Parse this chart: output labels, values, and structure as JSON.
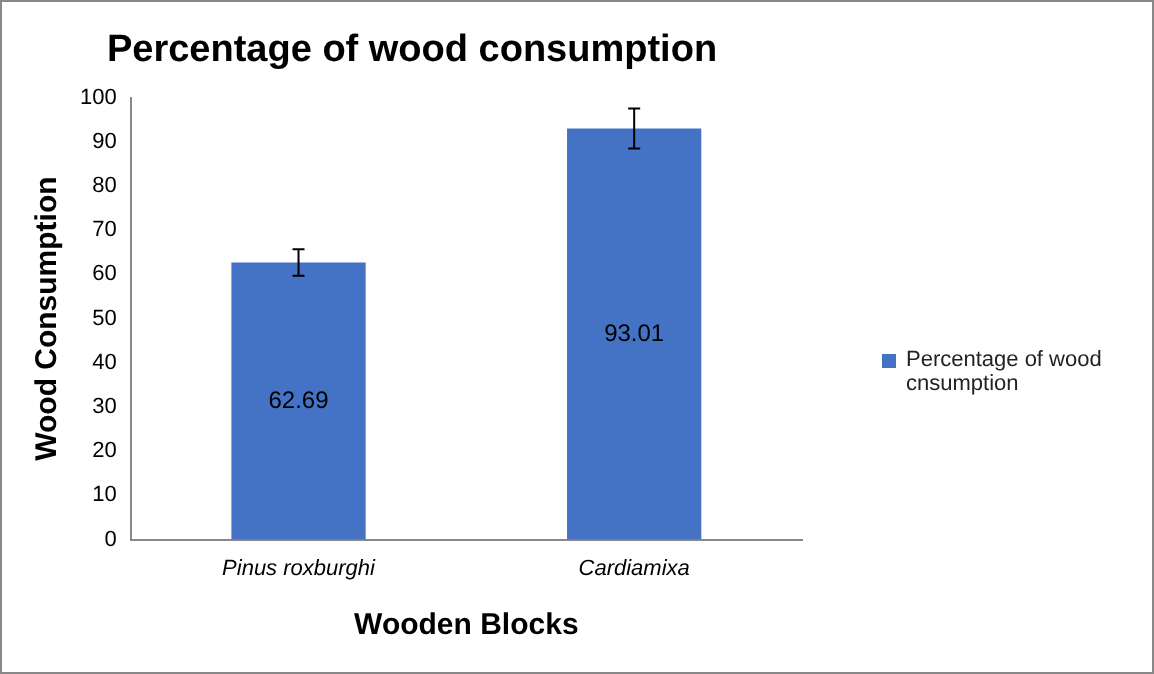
{
  "chart_data": {
    "type": "bar",
    "title": "Percentage of wood consumption",
    "xlabel": "Wooden Blocks",
    "ylabel": "Wood Consumption",
    "categories": [
      "Pinus roxburghi",
      "Cardiamixa"
    ],
    "series": [
      {
        "name": "Percentage of wood cnsumption",
        "color": "#4472c4",
        "values": [
          62.69,
          93.01
        ],
        "errors": [
          3,
          4.5
        ]
      }
    ],
    "ylim": [
      0,
      100
    ],
    "yticks": [
      0,
      10,
      20,
      30,
      40,
      50,
      60,
      70,
      80,
      90,
      100
    ],
    "grid": false,
    "legend": "right",
    "data_labels": true
  }
}
